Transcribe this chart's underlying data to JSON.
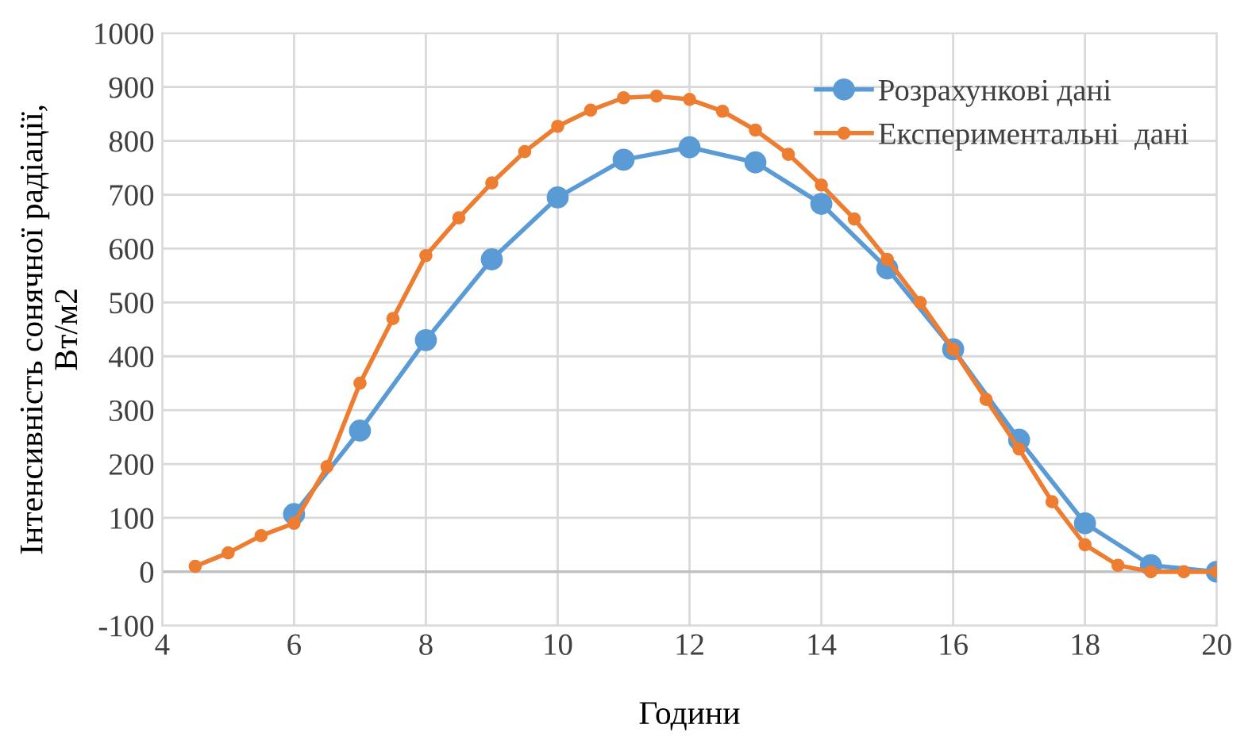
{
  "chart_data": {
    "type": "line",
    "xlabel": "Години",
    "ylabel": "Інтенсивність сонячної радіації,\nВт/м2",
    "xlim": [
      4,
      20
    ],
    "xticks": [
      4,
      6,
      8,
      10,
      12,
      14,
      16,
      18,
      20
    ],
    "ylim": [
      -100,
      1000
    ],
    "yticks": [
      -100,
      0,
      100,
      200,
      300,
      400,
      500,
      600,
      700,
      800,
      900,
      1000
    ],
    "grid": true,
    "legend": "top right",
    "marker": "circle",
    "line_style": "solid",
    "series": [
      {
        "name": "Розрахункові дані",
        "color": "#5b9bd5",
        "x": [
          6,
          7,
          8,
          9,
          10,
          11,
          12,
          13,
          14,
          15,
          16,
          17,
          18,
          19,
          20
        ],
        "values": [
          107,
          262,
          430,
          580,
          695,
          765,
          788,
          760,
          683,
          563,
          413,
          245,
          90,
          12,
          0
        ]
      },
      {
        "name": "Експериментальні  дані",
        "color": "#ed7d31",
        "x": [
          4.5,
          5,
          5.5,
          6,
          6.5,
          7,
          7.5,
          8,
          8.5,
          9,
          9.5,
          10,
          10.5,
          11,
          11.5,
          12,
          12.5,
          13,
          13.5,
          14,
          14.5,
          15,
          15.5,
          16,
          16.5,
          17,
          17.5,
          18,
          18.5,
          19,
          19.5,
          20
        ],
        "values": [
          10,
          35,
          67,
          90,
          195,
          350,
          470,
          587,
          657,
          722,
          780,
          827,
          857,
          880,
          883,
          877,
          855,
          820,
          775,
          718,
          655,
          580,
          500,
          413,
          320,
          228,
          130,
          50,
          12,
          0,
          0,
          0
        ]
      }
    ]
  }
}
